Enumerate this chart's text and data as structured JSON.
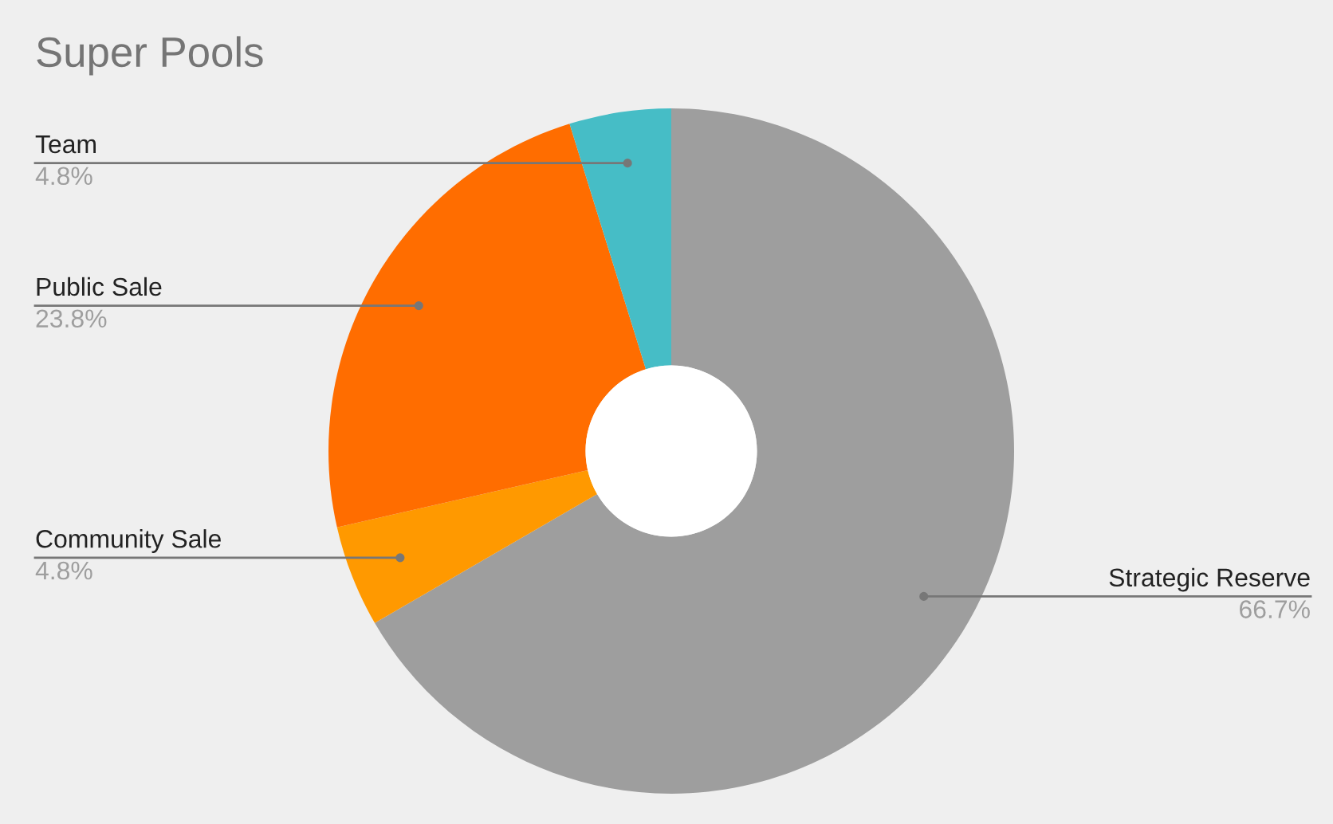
{
  "chart_data": {
    "type": "donut",
    "title": "Super Pools",
    "categories": [
      "Strategic Reserve",
      "Community Sale",
      "Public Sale",
      "Team"
    ],
    "values": [
      66.7,
      4.8,
      23.8,
      4.8
    ],
    "colors": [
      "#9e9e9e",
      "#ff9900",
      "#ff6d00",
      "#46bdc6"
    ],
    "value_labels": [
      "66.7%",
      "4.8%",
      "23.8%",
      "4.8%"
    ],
    "legend": false
  }
}
